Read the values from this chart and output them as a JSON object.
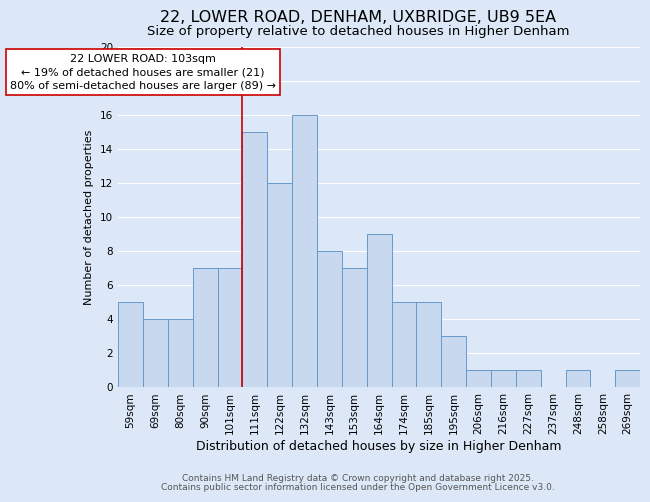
{
  "title": "22, LOWER ROAD, DENHAM, UXBRIDGE, UB9 5EA",
  "subtitle": "Size of property relative to detached houses in Higher Denham",
  "xlabel": "Distribution of detached houses by size in Higher Denham",
  "ylabel": "Number of detached properties",
  "categories": [
    "59sqm",
    "69sqm",
    "80sqm",
    "90sqm",
    "101sqm",
    "111sqm",
    "122sqm",
    "132sqm",
    "143sqm",
    "153sqm",
    "164sqm",
    "174sqm",
    "185sqm",
    "195sqm",
    "206sqm",
    "216sqm",
    "227sqm",
    "237sqm",
    "248sqm",
    "258sqm",
    "269sqm"
  ],
  "values": [
    5,
    4,
    4,
    7,
    7,
    15,
    12,
    16,
    8,
    7,
    9,
    5,
    5,
    3,
    1,
    1,
    1,
    0,
    1,
    0,
    1
  ],
  "bar_color": "#c8d8ee",
  "bar_edge_color": "#6699cc",
  "background_color": "#dce8f8",
  "grid_color": "#ffffff",
  "vline_x_index": 4,
  "vline_color": "#cc0000",
  "annotation_line1": "22 LOWER ROAD: 103sqm",
  "annotation_line2": "← 19% of detached houses are smaller (21)",
  "annotation_line3": "80% of semi-detached houses are larger (89) →",
  "footer1": "Contains HM Land Registry data © Crown copyright and database right 2025.",
  "footer2": "Contains public sector information licensed under the Open Government Licence v3.0.",
  "ylim": [
    0,
    20
  ],
  "yticks": [
    0,
    2,
    4,
    6,
    8,
    10,
    12,
    14,
    16,
    18,
    20
  ],
  "title_fontsize": 11.5,
  "subtitle_fontsize": 9.5,
  "xlabel_fontsize": 9,
  "ylabel_fontsize": 8,
  "tick_fontsize": 7.5,
  "annotation_fontsize": 8,
  "footer_fontsize": 6.5
}
